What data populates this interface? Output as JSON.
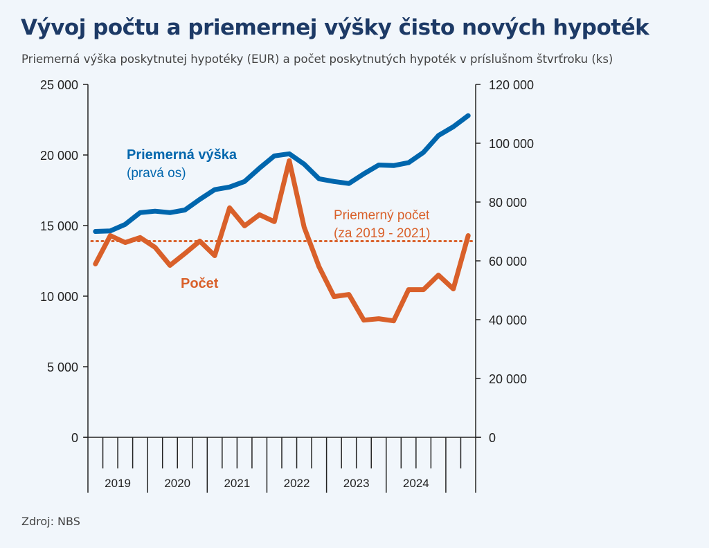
{
  "title": "Vývoj počtu a priemernej výšky čisto nových hypoték",
  "subtitle": "Priemerná výška poskytnutej hypotéky (EUR) a počet poskytnutých hypoték v príslušnom štvrťroku (ks)",
  "source": "Zdroj: NBS",
  "chart_data": {
    "type": "line",
    "x": [
      "2019Q1",
      "2019Q2",
      "2019Q3",
      "2019Q4",
      "2020Q1",
      "2020Q2",
      "2020Q3",
      "2020Q4",
      "2021Q1",
      "2021Q2",
      "2021Q3",
      "2021Q4",
      "2022Q1",
      "2022Q2",
      "2022Q3",
      "2022Q4",
      "2023Q1",
      "2023Q2",
      "2023Q3",
      "2023Q4",
      "2024Q1",
      "2024Q2",
      "2024Q3",
      "2024Q4",
      "2025Q1",
      "2025Q2"
    ],
    "year_labels": [
      "2019",
      "2020",
      "2021",
      "2022",
      "2023",
      "2024"
    ],
    "left_axis": {
      "ylim": [
        0,
        25000
      ],
      "ticks": [
        0,
        5000,
        10000,
        15000,
        20000,
        25000
      ],
      "tick_labels": [
        "0",
        "5 000",
        "10 000",
        "15 000",
        "20 000",
        "25 000"
      ]
    },
    "right_axis": {
      "ylim": [
        0,
        120000
      ],
      "ticks": [
        0,
        20000,
        40000,
        60000,
        80000,
        100000,
        120000
      ],
      "tick_labels": [
        "0",
        "20 000",
        "40 000",
        "60 000",
        "80 000",
        "100 000",
        "120 000"
      ]
    },
    "series": [
      {
        "name": "Priemerná výška",
        "sublabel": "(pravá os)",
        "axis": "right",
        "color": "#0066ad",
        "values": [
          70000,
          70200,
          72400,
          76400,
          76900,
          76400,
          77300,
          80900,
          84200,
          85100,
          87000,
          91500,
          95700,
          96400,
          92900,
          87900,
          87000,
          86300,
          89600,
          92600,
          92400,
          93400,
          96900,
          102600,
          105600,
          109400
        ]
      },
      {
        "name": "Počet",
        "axis": "left",
        "color": "#d9602a",
        "values": [
          12280,
          14290,
          13800,
          14150,
          13460,
          12180,
          13020,
          13900,
          12870,
          16260,
          14980,
          15770,
          15280,
          19600,
          14880,
          12080,
          9970,
          10120,
          8300,
          8400,
          8250,
          10460,
          10460,
          11490,
          10510,
          14290
        ]
      }
    ],
    "reference_line": {
      "name": "Priemerný počet",
      "sublabel": "(za 2019 - 2021)",
      "axis": "left",
      "value": 13900,
      "style": "dotted",
      "color": "#d9602a"
    }
  }
}
